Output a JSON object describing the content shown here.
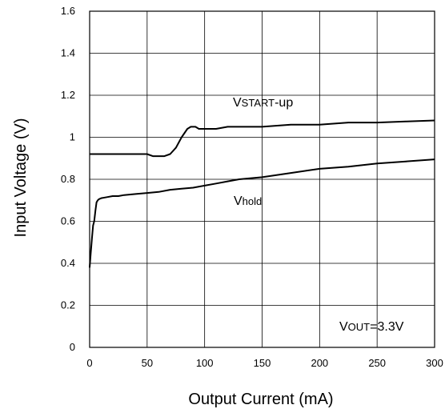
{
  "chart_data": {
    "type": "line",
    "xlabel": "Output Current (mA)",
    "ylabel": "Input Voltage (V)",
    "xlim": [
      0,
      300
    ],
    "ylim": [
      0,
      1.6
    ],
    "x_ticks": [
      0,
      50,
      100,
      150,
      200,
      250,
      300
    ],
    "x_tick_labels": [
      "0",
      "50",
      "100",
      "150",
      "200",
      "250",
      "300"
    ],
    "y_ticks": [
      0,
      0.2,
      0.4,
      0.6,
      0.8,
      1.0,
      1.2,
      1.4,
      1.6
    ],
    "y_tick_labels": [
      "0",
      "0.2",
      "0.4",
      "0.6",
      "0.8",
      "1",
      "1.2",
      "1.4",
      "1.6"
    ],
    "grid": true,
    "line_color": "#000000",
    "series": [
      {
        "label_main": "V",
        "label_sub": "START",
        "label_rest": "-up",
        "x": [
          0,
          10,
          20,
          30,
          40,
          50,
          55,
          60,
          65,
          70,
          75,
          80,
          85,
          88,
          92,
          95,
          100,
          110,
          120,
          150,
          175,
          200,
          225,
          250,
          275,
          300
        ],
        "y": [
          0.92,
          0.92,
          0.92,
          0.92,
          0.92,
          0.92,
          0.91,
          0.91,
          0.91,
          0.92,
          0.95,
          1.0,
          1.04,
          1.05,
          1.05,
          1.04,
          1.04,
          1.04,
          1.05,
          1.05,
          1.06,
          1.06,
          1.07,
          1.07,
          1.075,
          1.08
        ]
      },
      {
        "label_main": "V",
        "label_sub": "hold",
        "label_rest": "",
        "x": [
          0,
          1,
          2,
          3,
          4,
          5,
          6,
          7,
          8,
          10,
          15,
          20,
          25,
          30,
          40,
          50,
          60,
          70,
          80,
          90,
          100,
          110,
          120,
          130,
          150,
          175,
          200,
          225,
          250,
          275,
          300
        ],
        "y": [
          0.38,
          0.45,
          0.52,
          0.58,
          0.6,
          0.65,
          0.69,
          0.7,
          0.705,
          0.71,
          0.715,
          0.72,
          0.72,
          0.725,
          0.73,
          0.735,
          0.74,
          0.75,
          0.755,
          0.76,
          0.77,
          0.78,
          0.79,
          0.8,
          0.81,
          0.83,
          0.85,
          0.86,
          0.875,
          0.885,
          0.895
        ]
      }
    ],
    "annotation": {
      "main": "V",
      "sub": "OUT",
      "rest": "=3.3V"
    }
  }
}
